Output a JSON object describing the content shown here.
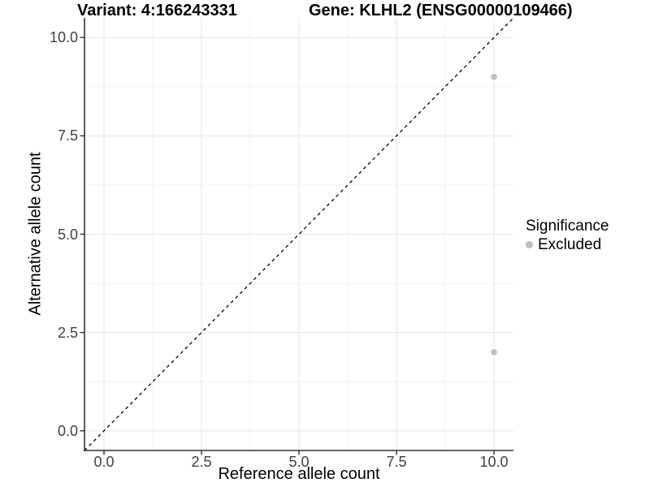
{
  "chart_data": {
    "type": "scatter",
    "title_left": "Variant: 4:166243331",
    "title_right": "Gene: KLHL2 (ENSG00000109466)",
    "xlabel": "Reference allele count",
    "ylabel": "Alternative allele count",
    "xlim": [
      -0.5,
      10.5
    ],
    "ylim": [
      -0.5,
      10.5
    ],
    "x_ticks": [
      0,
      2.5,
      5,
      7.5,
      10
    ],
    "y_ticks": [
      0,
      2.5,
      5,
      7.5,
      10
    ],
    "x_tick_labels": [
      "0.0",
      "2.5",
      "5.0",
      "7.5",
      "10.0"
    ],
    "y_tick_labels": [
      "0.0",
      "2.5",
      "5.0",
      "7.5",
      "10.0"
    ],
    "grid": {
      "major": true,
      "minor": true
    },
    "series": [
      {
        "name": "Excluded",
        "color": "#bebebe",
        "marker": "circle",
        "points": [
          {
            "x": 10,
            "y": 9
          },
          {
            "x": 10,
            "y": 2
          }
        ]
      }
    ],
    "reference_line": {
      "type": "identity y=x",
      "style": "dashed",
      "color": "#000000",
      "x1": -0.5,
      "y1": -0.5,
      "x2": 10.5,
      "y2": 10.5
    },
    "legend": {
      "title": "Significance",
      "position": "right",
      "items": [
        {
          "label": "Excluded",
          "color": "#bebebe",
          "marker": "circle"
        }
      ]
    }
  },
  "colors": {
    "background": "#ffffff",
    "grid_major": "#e5e5e5",
    "grid_minor": "#f2f2f2",
    "axis_line": "#333333",
    "tick_mark": "#333333",
    "tick_label": "#404040",
    "dashed_line": "#000000"
  }
}
